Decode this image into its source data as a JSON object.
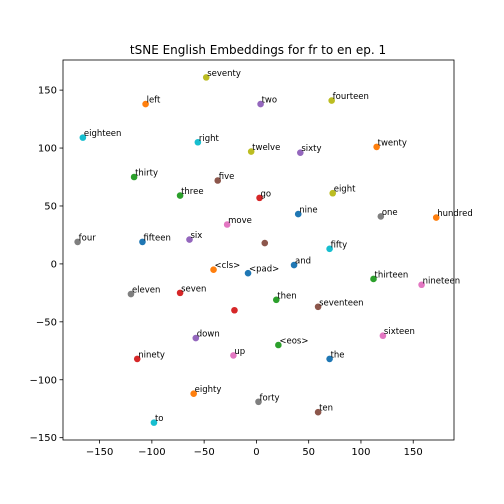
{
  "chart_data": {
    "type": "scatter",
    "title": "tSNE English Embeddings for fr to en ep. 1",
    "xlabel": "",
    "ylabel": "",
    "xlim": [
      -185,
      189
    ],
    "ylim": [
      -152,
      176
    ],
    "xticks": [
      -150,
      -100,
      -50,
      0,
      50,
      100,
      150
    ],
    "yticks": [
      -150,
      -100,
      -50,
      0,
      50,
      100,
      150
    ],
    "grid": false,
    "points": [
      {
        "label": "seventy",
        "x": -48,
        "y": 161,
        "color": "#bcbd22"
      },
      {
        "label": "left",
        "x": -106,
        "y": 138,
        "color": "#ff7f0e"
      },
      {
        "label": "two",
        "x": 4,
        "y": 138,
        "color": "#9467bd"
      },
      {
        "label": "fourteen",
        "x": 72,
        "y": 141,
        "color": "#bcbd22"
      },
      {
        "label": "eighteen",
        "x": -166,
        "y": 109,
        "color": "#17becf"
      },
      {
        "label": "right",
        "x": -56,
        "y": 105,
        "color": "#17becf"
      },
      {
        "label": "twelve",
        "x": -5,
        "y": 97,
        "color": "#bcbd22"
      },
      {
        "label": "sixty",
        "x": 42,
        "y": 96,
        "color": "#9467bd"
      },
      {
        "label": "twenty",
        "x": 115,
        "y": 101,
        "color": "#ff7f0e"
      },
      {
        "label": "thirty",
        "x": -117,
        "y": 75,
        "color": "#2ca02c"
      },
      {
        "label": "five",
        "x": -37,
        "y": 72,
        "color": "#8c564b"
      },
      {
        "label": "three",
        "x": -73,
        "y": 59,
        "color": "#2ca02c"
      },
      {
        "label": "eight",
        "x": 73,
        "y": 61,
        "color": "#bcbd22"
      },
      {
        "label": "go",
        "x": 3,
        "y": 57,
        "color": "#d62728"
      },
      {
        "label": "nine",
        "x": 40,
        "y": 43,
        "color": "#1f77b4"
      },
      {
        "label": "one",
        "x": 119,
        "y": 41,
        "color": "#7f7f7f"
      },
      {
        "label": "hundred",
        "x": 172,
        "y": 40,
        "color": "#ff7f0e"
      },
      {
        "label": "move",
        "x": -28,
        "y": 34,
        "color": "#e377c2"
      },
      {
        "label": "four",
        "x": -171,
        "y": 19,
        "color": "#7f7f7f"
      },
      {
        "label": "fifteen",
        "x": -109,
        "y": 19,
        "color": "#1f77b4"
      },
      {
        "label": "six",
        "x": -64,
        "y": 21,
        "color": "#9467bd"
      },
      {
        "label": "",
        "x": 8,
        "y": 18,
        "color": "#8c564b"
      },
      {
        "label": "fifty",
        "x": 70,
        "y": 13,
        "color": "#17becf"
      },
      {
        "label": "<cls>",
        "x": -41,
        "y": -5,
        "color": "#ff7f0e"
      },
      {
        "label": "<pad>",
        "x": -8,
        "y": -8,
        "color": "#1f77b4"
      },
      {
        "label": "and",
        "x": 36,
        "y": -1,
        "color": "#1f77b4"
      },
      {
        "label": "thirteen",
        "x": 112,
        "y": -13,
        "color": "#2ca02c"
      },
      {
        "label": "nineteen",
        "x": 158,
        "y": -18,
        "color": "#e377c2"
      },
      {
        "label": "eleven",
        "x": -120,
        "y": -26,
        "color": "#7f7f7f"
      },
      {
        "label": "seven",
        "x": -73,
        "y": -25,
        "color": "#d62728"
      },
      {
        "label": "then",
        "x": 19,
        "y": -31,
        "color": "#2ca02c"
      },
      {
        "label": "seventeen",
        "x": 59,
        "y": -37,
        "color": "#8c564b"
      },
      {
        "label": "",
        "x": -21,
        "y": -40,
        "color": "#d62728"
      },
      {
        "label": "down",
        "x": -58,
        "y": -64,
        "color": "#9467bd"
      },
      {
        "label": "sixteen",
        "x": 121,
        "y": -62,
        "color": "#e377c2"
      },
      {
        "label": "<eos>",
        "x": 21,
        "y": -70,
        "color": "#2ca02c"
      },
      {
        "label": "ninety",
        "x": -114,
        "y": -82,
        "color": "#d62728"
      },
      {
        "label": "up",
        "x": -22,
        "y": -79,
        "color": "#e377c2"
      },
      {
        "label": "the",
        "x": 70,
        "y": -82,
        "color": "#1f77b4"
      },
      {
        "label": "eighty",
        "x": -60,
        "y": -112,
        "color": "#ff7f0e"
      },
      {
        "label": "forty",
        "x": 2,
        "y": -119,
        "color": "#7f7f7f"
      },
      {
        "label": "ten",
        "x": 59,
        "y": -128,
        "color": "#8c564b"
      },
      {
        "label": "to",
        "x": -98,
        "y": -137,
        "color": "#17becf"
      }
    ]
  }
}
